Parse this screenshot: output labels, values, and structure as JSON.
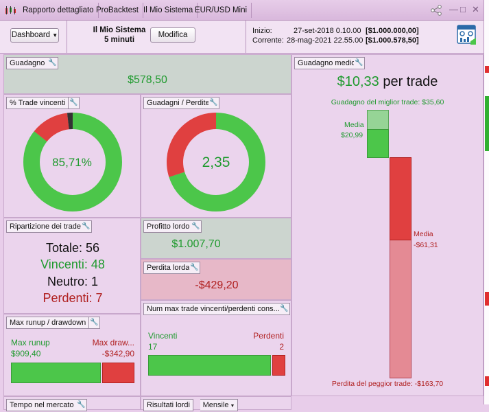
{
  "tabs": [
    {
      "label": "Rapporto dettagliato"
    },
    {
      "label": "ProBacktest"
    },
    {
      "label": "Il Mio Sistema"
    },
    {
      "label": "EUR/USD Mini"
    }
  ],
  "header": {
    "dashboard_label": "Dashboard",
    "system_name": "Il Mio Sistema",
    "timeframe": "5 minuti",
    "edit_label": "Modifica",
    "start_label": "Inizio:",
    "start_date": "27-set-2018 0.10.00",
    "start_value": "[$1.000.000,00]",
    "current_label": "Corrente:",
    "current_date": "28-mag-2021 22.55.00",
    "current_value": "[$1.000.578,50]"
  },
  "gain": {
    "title": "Guadagno",
    "value": "$578,50"
  },
  "win_pct": {
    "title": "% Trade vincenti",
    "value": "85,71%",
    "win_fraction": 0.8571,
    "loss_fraction": 0.125,
    "neutral_fraction": 0.0179
  },
  "gain_loss": {
    "title": "Guadagni / Perdite",
    "value": "2,35",
    "gain_fraction": 0.701,
    "loss_fraction": 0.299
  },
  "breakdown": {
    "title": "Ripartizione dei trade",
    "total": "Totale: 56",
    "winners": "Vincenti: 48",
    "neutral": "Neutro: 1",
    "losers": "Perdenti: 7"
  },
  "gross_profit": {
    "title": "Profitto lordo",
    "value": "$1.007,70"
  },
  "gross_loss": {
    "title": "Perdita lorda",
    "value": "-$429,20"
  },
  "runup": {
    "title": "Max runup / drawdown",
    "runup_label": "Max runup",
    "runup_value": "$909,40",
    "drawdown_label": "Max draw...",
    "drawdown_value": "-$342,90",
    "runup_amount": 909.4,
    "drawdown_amount": 342.9
  },
  "consecutive": {
    "title": "Num max trade vincenti/perdenti cons...",
    "winners_label": "Vincenti",
    "winners_value": "17",
    "losers_label": "Perdenti",
    "losers_value": "2",
    "winners_count": 17,
    "losers_count": 2
  },
  "avg_gain": {
    "title": "Guadagno medio",
    "value": "$10,33",
    "suffix": "per trade",
    "best_trade": "Guadagno del miglior trade: $35,60",
    "avg_win_label": "Media",
    "avg_win_value": "$20,99",
    "avg_loss_label": "Media",
    "avg_loss_value": "-$61,31",
    "worst_trade": "Perdita del peggior trade: -$163,70",
    "best_amount": 35.6,
    "avg_win_amount": 20.99,
    "avg_loss_amount": 61.31,
    "worst_amount": 163.7
  },
  "bottom": {
    "time_title": "Tempo nel mercato",
    "results_title": "Risultati lordi",
    "period": "Mensile"
  },
  "colors": {
    "green": "#4cc64a",
    "red": "#e04040",
    "light_green": "#96d496",
    "light_red": "#e48a94"
  }
}
